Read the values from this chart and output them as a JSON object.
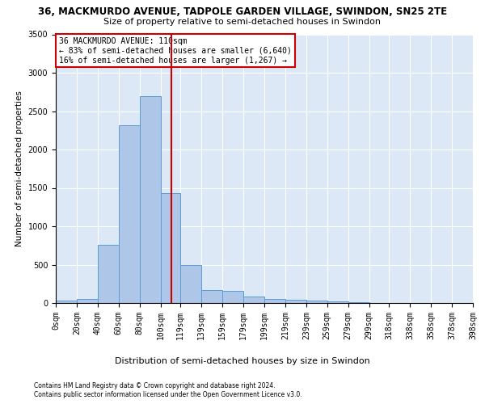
{
  "title": "36, MACKMURDO AVENUE, TADPOLE GARDEN VILLAGE, SWINDON, SN25 2TE",
  "subtitle": "Size of property relative to semi-detached houses in Swindon",
  "xlabel": "Distribution of semi-detached houses by size in Swindon",
  "ylabel": "Number of semi-detached properties",
  "property_size": 110,
  "annotation_line1": "36 MACKMURDO AVENUE: 110sqm",
  "annotation_line2": "← 83% of semi-detached houses are smaller (6,640)",
  "annotation_line3": "16% of semi-detached houses are larger (1,267) →",
  "footnote1": "Contains HM Land Registry data © Crown copyright and database right 2024.",
  "footnote2": "Contains public sector information licensed under the Open Government Licence v3.0.",
  "bin_edges": [
    0,
    20,
    40,
    60,
    80,
    100,
    119,
    139,
    159,
    179,
    199,
    219,
    239,
    259,
    279,
    299,
    318,
    338,
    358,
    378,
    398
  ],
  "bin_counts": [
    30,
    55,
    760,
    2320,
    2700,
    1430,
    500,
    170,
    160,
    80,
    55,
    40,
    30,
    20,
    10,
    5,
    5,
    0,
    0,
    0
  ],
  "bar_color": "#aec6e8",
  "bar_edge_color": "#5b9bd5",
  "highlight_line_color": "#cc0000",
  "annotation_box_color": "#cc0000",
  "background_color": "#dce8f5",
  "ylim": [
    0,
    3500
  ],
  "xlim": [
    0,
    398
  ],
  "tick_labels": [
    "0sqm",
    "20sqm",
    "40sqm",
    "60sqm",
    "80sqm",
    "100sqm",
    "119sqm",
    "139sqm",
    "159sqm",
    "179sqm",
    "199sqm",
    "219sqm",
    "239sqm",
    "259sqm",
    "279sqm",
    "299sqm",
    "318sqm",
    "338sqm",
    "358sqm",
    "378sqm",
    "398sqm"
  ],
  "yticks": [
    0,
    500,
    1000,
    1500,
    2000,
    2500,
    3000,
    3500
  ],
  "title_fontsize": 8.5,
  "subtitle_fontsize": 8,
  "ylabel_fontsize": 7.5,
  "xlabel_fontsize": 8,
  "annotation_fontsize": 7,
  "tick_fontsize": 7,
  "footnote_fontsize": 5.5
}
